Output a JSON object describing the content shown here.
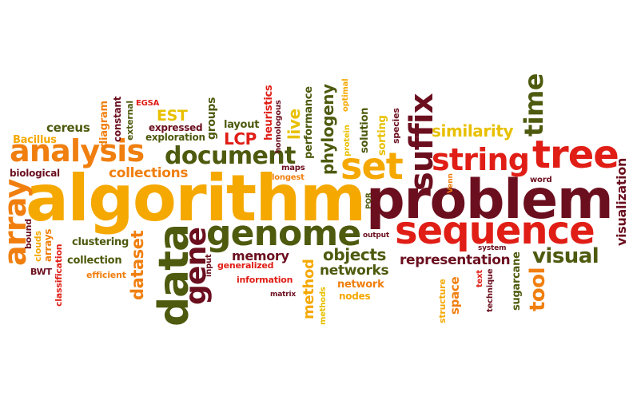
{
  "palette": {
    "orange": "#f07f0f",
    "yellow": "#e8c000",
    "dark_red": "#6b0f1f",
    "olive": "#4e5a0e",
    "red": "#e01e16",
    "amber": "#f5a800"
  },
  "words": {
    "algorithm": "algorithm",
    "problem": "problem",
    "sequence": "sequence",
    "tree": "tree",
    "data": "data",
    "genome": "genome",
    "analysis": "analysis",
    "string": "string",
    "set": "set",
    "suffix": "suffix",
    "array": "array",
    "document": "document",
    "gene": "gene",
    "time": "time",
    "tool": "tool",
    "visual": "visual",
    "dataset": "dataset",
    "similarity": "similarity",
    "visualization": "visualization",
    "representation": "representation",
    "objects": "objects",
    "networks": "networks",
    "collections": "collections",
    "phylogeny": "phylogeny",
    "method": "method",
    "memory": "memory",
    "live": "live",
    "LCP": "LCP",
    "EST": "EST",
    "cereus": "cereus",
    "Bacillus": "Bacillus",
    "biological": "biological",
    "diagram": "diagram",
    "constant": "constant",
    "external": "external",
    "EGSA": "EGSA",
    "expressed": "expressed",
    "exploration": "exploration",
    "groups": "groups",
    "layout": "layout",
    "heuristics": "heuristics",
    "homologous": "homologous",
    "performance": "performance",
    "protein": "protein",
    "optimal": "optimal",
    "solution": "solution",
    "sorting": "sorting",
    "species": "species",
    "maps": "maps",
    "longest": "longest",
    "PQR": "PQR",
    "Venn": "Venn",
    "word": "word",
    "clustering": "clustering",
    "bound": "bound",
    "clouds": "clouds",
    "arrays": "arrays",
    "collection": "collection",
    "BWT": "BWT",
    "classification": "classification",
    "efficient": "efficient",
    "input": "input",
    "generalized": "generalized",
    "information": "information",
    "matrix": "matrix",
    "network": "network",
    "nodes": "nodes",
    "methods": "methods",
    "output": "output",
    "system": "system",
    "structure": "structure",
    "space": "space",
    "text": "text",
    "technique": "technique",
    "sugarcane": "sugarcane"
  }
}
